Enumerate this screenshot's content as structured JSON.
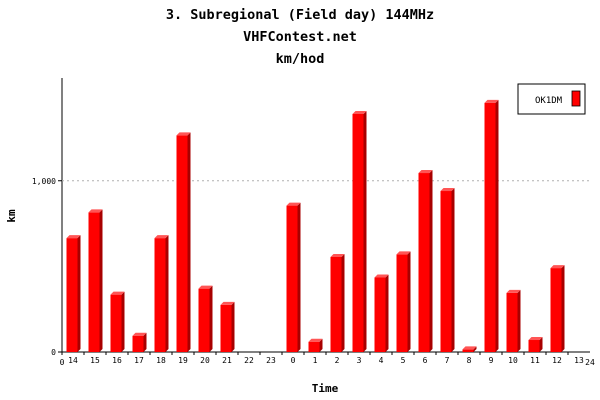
{
  "chart_data": {
    "type": "bar",
    "title": "3. Subregional (Field day) 144MHz",
    "subtitle": "VHFContest.net",
    "unit_line": "km/hod",
    "xlabel": "Time",
    "ylabel": "km",
    "ylim": [
      0,
      1600
    ],
    "yticks": [
      {
        "value": 0,
        "label": "0"
      },
      {
        "value": 1000,
        "label": "1,000"
      }
    ],
    "x_axis_end_labels": {
      "left": "0",
      "right": "24"
    },
    "grid": "horizontal dashed at 1,000",
    "legend_position": "top-right",
    "categories": [
      "14",
      "15",
      "16",
      "17",
      "18",
      "19",
      "20",
      "21",
      "22",
      "23",
      "0",
      "1",
      "2",
      "3",
      "4",
      "5",
      "6",
      "7",
      "8",
      "9",
      "10",
      "11",
      "12",
      "13"
    ],
    "series": [
      {
        "name": "OK1DM",
        "color": "#ff0000",
        "values": [
          665,
          815,
          335,
          95,
          665,
          1265,
          370,
          275,
          0,
          0,
          855,
          60,
          555,
          1390,
          435,
          570,
          1045,
          940,
          15,
          1455,
          345,
          70,
          490,
          0
        ]
      }
    ]
  }
}
